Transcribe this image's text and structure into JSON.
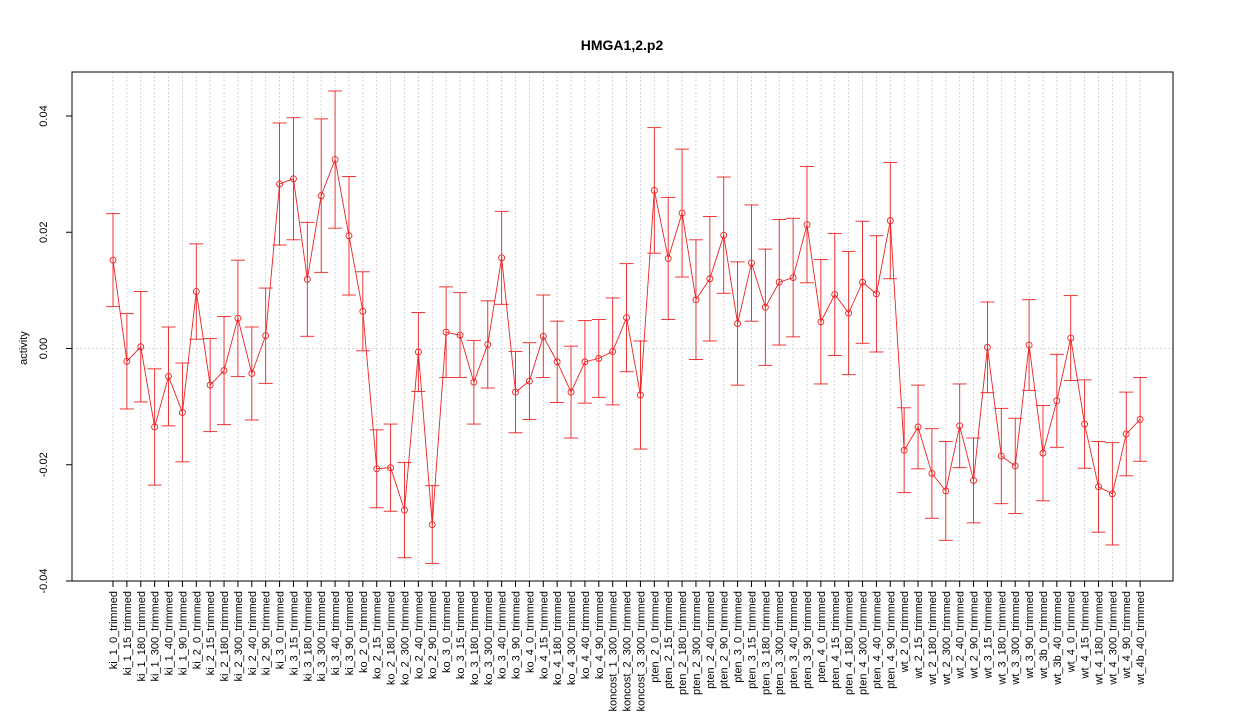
{
  "chart_data": {
    "type": "line",
    "title": "HMGA1,2.p2",
    "xlabel": "",
    "ylabel": "activity",
    "ylim": [
      -0.04,
      0.045
    ],
    "yticks": [
      -0.04,
      -0.02,
      0.0,
      0.02,
      0.04
    ],
    "ytick_labels": [
      "-0.04",
      "-0.02",
      "0.00",
      "0.02",
      "0.04"
    ],
    "grid": true,
    "series_color": "#ee2222",
    "grid_color": "#cccccc",
    "categories": [
      "ki_1_0_trimmed",
      "ki_1_15_trimmed",
      "ki_1_180_trimmed",
      "ki_1_300_trimmed",
      "ki_1_40_trimmed",
      "ki_1_90_trimmed",
      "ki_2_0_trimmed",
      "ki_2_15_trimmed",
      "ki_2_180_trimmed",
      "ki_2_300_trimmed",
      "ki_2_40_trimmed",
      "ki_2_90_trimmed",
      "ki_3_0_trimmed",
      "ki_3_15_trimmed",
      "ki_3_180_trimmed",
      "ki_3_300_trimmed",
      "ki_3_40_trimmed",
      "ki_3_90_trimmed",
      "ko_2_0_trimmed",
      "ko_2_15_trimmed",
      "ko_2_180_trimmed",
      "ko_2_300_trimmed",
      "ko_2_40_trimmed",
      "ko_2_90_trimmed",
      "ko_3_0_trimmed",
      "ko_3_15_trimmed",
      "ko_3_180_trimmed",
      "ko_3_300_trimmed",
      "ko_3_40_trimmed",
      "ko_3_90_trimmed",
      "ko_4_0_trimmed",
      "ko_4_15_trimmed",
      "ko_4_180_trimmed",
      "ko_4_300_trimmed",
      "ko_4_40_trimmed",
      "ko_4_90_trimmed",
      "koncost_1_300_trimmed",
      "koncost_2_300_trimmed",
      "koncost_3_300_trimmed",
      "pten_2_0_trimmed",
      "pten_2_15_trimmed",
      "pten_2_180_trimmed",
      "pten_2_300_trimmed",
      "pten_2_40_trimmed",
      "pten_2_90_trimmed",
      "pten_3_0_trimmed",
      "pten_3_15_trimmed",
      "pten_3_180_trimmed",
      "pten_3_300_trimmed",
      "pten_3_40_trimmed",
      "pten_3_90_trimmed",
      "pten_4_0_trimmed",
      "pten_4_15_trimmed",
      "pten_4_180_trimmed",
      "pten_4_300_trimmed",
      "pten_4_40_trimmed",
      "pten_4_90_trimmed",
      "wt_2_0_trimmed",
      "wt_2_15_trimmed",
      "wt_2_180_trimmed",
      "wt_2_300_trimmed",
      "wt_2_40_trimmed",
      "wt_2_90_trimmed",
      "wt_3_15_trimmed",
      "wt_3_180_trimmed",
      "wt_3_300_trimmed",
      "wt_3_90_trimmed",
      "wt_3b_0_trimmed",
      "wt_3b_40_trimmed",
      "wt_4_0_trimmed",
      "wt_4_15_trimmed",
      "wt_4_180_trimmed",
      "wt_4_300_trimmed",
      "wt_4_90_trimmed",
      "wt_4b_40_trimmed"
    ],
    "values": [
      0.0152,
      -0.0022,
      0.0003,
      -0.0135,
      -0.0048,
      -0.011,
      0.0098,
      -0.0063,
      -0.0038,
      0.0052,
      -0.0043,
      0.0022,
      0.0283,
      0.0292,
      0.0119,
      0.0263,
      0.0325,
      0.0194,
      0.0064,
      -0.0207,
      -0.0205,
      -0.0278,
      -0.0006,
      -0.0303,
      0.0028,
      0.0023,
      -0.0058,
      0.0007,
      0.0156,
      -0.0075,
      -0.0056,
      0.0021,
      -0.0023,
      -0.0075,
      -0.0023,
      -0.0017,
      -0.0005,
      0.0053,
      -0.008,
      0.0272,
      0.0155,
      0.0233,
      0.0084,
      0.012,
      0.0195,
      0.0043,
      0.0147,
      0.0071,
      0.0114,
      0.0122,
      0.0213,
      0.0046,
      0.0093,
      0.0061,
      0.0114,
      0.0094,
      0.022,
      -0.0175,
      -0.0135,
      -0.0215,
      -0.0245,
      -0.0133,
      -0.0227,
      0.0002,
      -0.0185,
      -0.0202,
      0.0006,
      -0.018,
      -0.009,
      0.0018,
      -0.013,
      -0.0238,
      -0.025,
      -0.0147,
      -0.0122
    ],
    "error": [
      0.008,
      0.0082,
      0.0095,
      0.01,
      0.0085,
      0.0085,
      0.0082,
      0.008,
      0.0093,
      0.01,
      0.008,
      0.0082,
      0.0105,
      0.0105,
      0.0098,
      0.0132,
      0.0118,
      0.0102,
      0.0068,
      0.0067,
      0.0075,
      0.0082,
      0.0068,
      0.0067,
      0.0078,
      0.0073,
      0.0072,
      0.0075,
      0.008,
      0.007,
      0.0066,
      0.0071,
      0.007,
      0.0079,
      0.0071,
      0.0067,
      0.0092,
      0.0093,
      0.0093,
      0.0108,
      0.0105,
      0.011,
      0.0103,
      0.0107,
      0.01,
      0.0106,
      0.01,
      0.01,
      0.0108,
      0.0102,
      0.01,
      0.0107,
      0.0105,
      0.0106,
      0.0105,
      0.01,
      0.01,
      0.0073,
      0.0072,
      0.0077,
      0.0085,
      0.0072,
      0.0073,
      0.0078,
      0.0082,
      0.0082,
      0.0078,
      0.0082,
      0.008,
      0.0073,
      0.0076,
      0.0078,
      0.0088,
      0.0072,
      0.0072
    ]
  }
}
